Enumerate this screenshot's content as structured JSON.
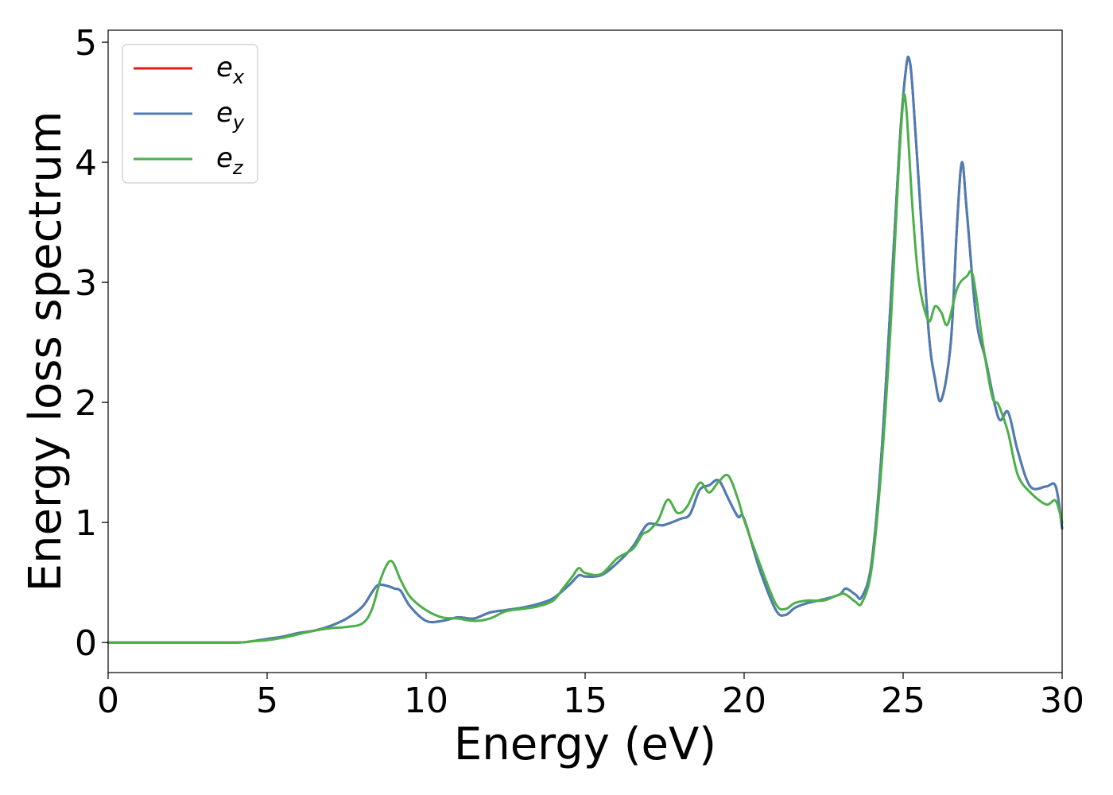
{
  "chart_data": {
    "type": "line",
    "xlabel": "Energy (eV)",
    "ylabel": "Energy loss spectrum",
    "xlim": [
      0,
      30
    ],
    "ylim": [
      -0.25,
      5.1
    ],
    "xticks": [
      0,
      5,
      10,
      15,
      20,
      25,
      30
    ],
    "yticks": [
      0,
      1,
      2,
      3,
      4,
      5
    ],
    "grid": false,
    "legend_position": "top-left",
    "series": [
      {
        "name": "e_x",
        "label_base": "e",
        "label_sub": "x",
        "color": "#e41a1c",
        "x": [
          0,
          2,
          4,
          4.5,
          5,
          5.5,
          6,
          6.5,
          7,
          7.5,
          8,
          8.3,
          8.5,
          8.8,
          9,
          9.2,
          9.5,
          10,
          10.5,
          11,
          11.5,
          12,
          12.5,
          13,
          13.5,
          14,
          14.5,
          14.8,
          15,
          15.5,
          16,
          16.5,
          16.8,
          17,
          17.3,
          17.5,
          18,
          18.3,
          18.6,
          18.9,
          19.2,
          19.5,
          19.8,
          20,
          20.5,
          21,
          21.3,
          21.6,
          22,
          22.5,
          23,
          23.2,
          23.5,
          23.7,
          24,
          24.3,
          24.6,
          24.9,
          25.1,
          25.2,
          25.3,
          25.5,
          25.8,
          26,
          26.2,
          26.5,
          26.7,
          26.85,
          27,
          27.3,
          27.6,
          28,
          28.3,
          28.6,
          29,
          29.5,
          29.8,
          30
        ],
        "values": [
          0,
          0,
          0,
          0.01,
          0.03,
          0.05,
          0.08,
          0.1,
          0.14,
          0.2,
          0.3,
          0.42,
          0.48,
          0.47,
          0.45,
          0.43,
          0.3,
          0.18,
          0.18,
          0.21,
          0.2,
          0.25,
          0.27,
          0.29,
          0.32,
          0.37,
          0.48,
          0.56,
          0.55,
          0.56,
          0.66,
          0.8,
          0.93,
          0.99,
          0.98,
          0.98,
          1.03,
          1.07,
          1.27,
          1.31,
          1.35,
          1.2,
          1.05,
          1.03,
          0.6,
          0.27,
          0.23,
          0.29,
          0.33,
          0.36,
          0.4,
          0.45,
          0.4,
          0.38,
          0.65,
          1.5,
          2.8,
          4.2,
          4.8,
          4.85,
          4.6,
          3.8,
          2.6,
          2.2,
          2.02,
          2.5,
          3.5,
          4.0,
          3.6,
          2.7,
          2.35,
          1.87,
          1.92,
          1.6,
          1.3,
          1.3,
          1.3,
          0.95
        ]
      },
      {
        "name": "e_y",
        "label_base": "e",
        "label_sub": "y",
        "color": "#4a7eb5",
        "x": [
          0,
          2,
          4,
          4.5,
          5,
          5.5,
          6,
          6.5,
          7,
          7.5,
          8,
          8.3,
          8.5,
          8.8,
          9,
          9.2,
          9.5,
          10,
          10.5,
          11,
          11.5,
          12,
          12.5,
          13,
          13.5,
          14,
          14.5,
          14.8,
          15,
          15.5,
          16,
          16.5,
          16.8,
          17,
          17.3,
          17.5,
          18,
          18.3,
          18.6,
          18.9,
          19.2,
          19.5,
          19.8,
          20,
          20.5,
          21,
          21.3,
          21.6,
          22,
          22.5,
          23,
          23.2,
          23.5,
          23.7,
          24,
          24.3,
          24.6,
          24.9,
          25.1,
          25.2,
          25.3,
          25.5,
          25.8,
          26,
          26.2,
          26.5,
          26.7,
          26.85,
          27,
          27.3,
          27.6,
          28,
          28.3,
          28.6,
          29,
          29.5,
          29.8,
          30
        ],
        "values": [
          0,
          0,
          0,
          0.01,
          0.03,
          0.05,
          0.08,
          0.1,
          0.14,
          0.2,
          0.3,
          0.42,
          0.48,
          0.47,
          0.45,
          0.43,
          0.3,
          0.18,
          0.18,
          0.21,
          0.2,
          0.25,
          0.27,
          0.29,
          0.32,
          0.37,
          0.48,
          0.56,
          0.55,
          0.56,
          0.66,
          0.8,
          0.93,
          0.99,
          0.98,
          0.98,
          1.03,
          1.07,
          1.27,
          1.31,
          1.35,
          1.2,
          1.05,
          1.03,
          0.6,
          0.27,
          0.23,
          0.29,
          0.33,
          0.36,
          0.4,
          0.45,
          0.4,
          0.38,
          0.65,
          1.5,
          2.8,
          4.2,
          4.8,
          4.85,
          4.6,
          3.8,
          2.6,
          2.2,
          2.02,
          2.5,
          3.5,
          4.0,
          3.6,
          2.7,
          2.35,
          1.87,
          1.92,
          1.6,
          1.3,
          1.3,
          1.3,
          0.95
        ]
      },
      {
        "name": "e_z",
        "label_base": "e",
        "label_sub": "z",
        "color": "#4daf4a",
        "x": [
          0,
          2,
          4,
          4.5,
          5,
          5.5,
          6,
          6.5,
          7,
          7.5,
          8,
          8.3,
          8.6,
          8.9,
          9.2,
          9.5,
          10,
          10.5,
          11,
          11.5,
          12,
          12.5,
          13,
          13.5,
          14,
          14.3,
          14.6,
          14.8,
          15,
          15.5,
          16,
          16.5,
          16.8,
          17,
          17.3,
          17.6,
          17.9,
          18.2,
          18.6,
          18.9,
          19.2,
          19.5,
          19.8,
          20,
          20.5,
          21,
          21.3,
          21.6,
          22,
          22.5,
          23,
          23.2,
          23.5,
          23.7,
          24,
          24.3,
          24.6,
          24.85,
          25.0,
          25.1,
          25.3,
          25.5,
          25.8,
          26.0,
          26.2,
          26.4,
          26.7,
          27.0,
          27.2,
          27.5,
          27.8,
          28.0,
          28.3,
          28.6,
          29.0,
          29.5,
          29.8,
          30
        ],
        "values": [
          0,
          0,
          0,
          0.01,
          0.02,
          0.04,
          0.07,
          0.1,
          0.12,
          0.13,
          0.16,
          0.28,
          0.55,
          0.68,
          0.52,
          0.38,
          0.27,
          0.21,
          0.2,
          0.18,
          0.2,
          0.26,
          0.28,
          0.3,
          0.35,
          0.45,
          0.55,
          0.62,
          0.58,
          0.57,
          0.7,
          0.78,
          0.9,
          0.93,
          1.02,
          1.19,
          1.08,
          1.13,
          1.33,
          1.25,
          1.34,
          1.39,
          1.2,
          1.02,
          0.65,
          0.32,
          0.28,
          0.33,
          0.35,
          0.35,
          0.4,
          0.4,
          0.34,
          0.33,
          0.6,
          1.4,
          2.6,
          3.9,
          4.5,
          4.45,
          3.6,
          3.0,
          2.68,
          2.8,
          2.75,
          2.65,
          2.95,
          3.05,
          3.05,
          2.5,
          2.05,
          1.98,
          1.75,
          1.4,
          1.25,
          1.15,
          1.18,
          1.0
        ]
      }
    ]
  }
}
